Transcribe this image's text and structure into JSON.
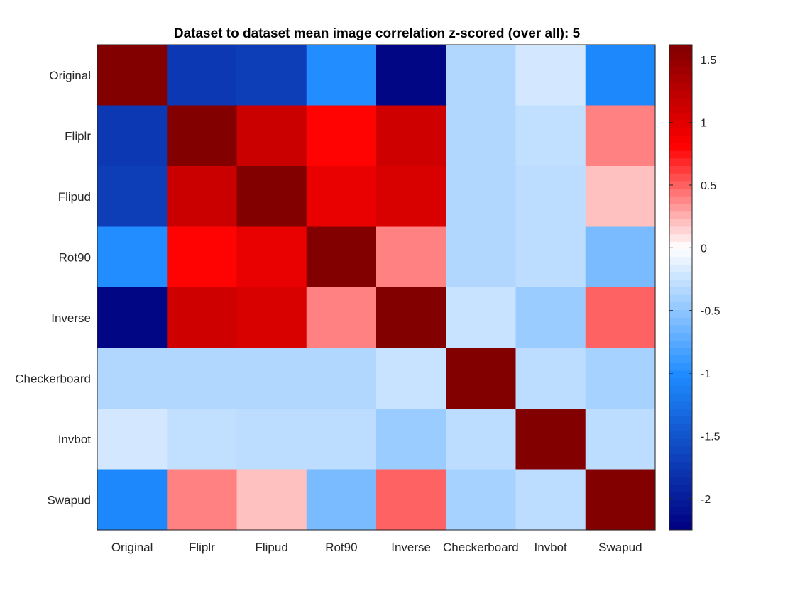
{
  "chart_data": {
    "type": "heatmap",
    "title": "Dataset to dataset mean image correlation z-scored (over all): 5",
    "xlabel": "",
    "ylabel": "",
    "x_categories": [
      "Original",
      "Fliplr",
      "Flipud",
      "Rot90",
      "Inverse",
      "Checkerboard",
      "Invbot",
      "Swapud"
    ],
    "y_categories": [
      "Original",
      "Fliplr",
      "Flipud",
      "Rot90",
      "Inverse",
      "Checkerboard",
      "Invbot",
      "Swapud"
    ],
    "values": [
      [
        1.6,
        -1.75,
        -1.7,
        -1.0,
        -2.2,
        -0.35,
        -0.2,
        -1.05
      ],
      [
        -1.75,
        1.6,
        1.15,
        0.8,
        1.12,
        -0.35,
        -0.28,
        0.4
      ],
      [
        -1.7,
        1.15,
        1.6,
        0.95,
        1.05,
        -0.35,
        -0.3,
        0.2
      ],
      [
        -1.0,
        0.8,
        0.95,
        1.6,
        0.4,
        -0.35,
        -0.3,
        -0.6
      ],
      [
        -2.2,
        1.12,
        1.05,
        0.4,
        1.6,
        -0.25,
        -0.45,
        0.5
      ],
      [
        -0.35,
        -0.35,
        -0.35,
        -0.35,
        -0.25,
        1.6,
        -0.3,
        -0.4
      ],
      [
        -0.2,
        -0.28,
        -0.3,
        -0.3,
        -0.45,
        -0.3,
        1.6,
        -0.3
      ],
      [
        -1.05,
        0.4,
        0.2,
        -0.6,
        0.5,
        -0.4,
        -0.3,
        1.6
      ]
    ],
    "colorbar": {
      "range": [
        -2.25,
        1.62
      ],
      "ticks": [
        1.5,
        1,
        0.5,
        0,
        -0.5,
        -1,
        -1.5,
        -2
      ],
      "tick_labels": [
        "1.5",
        "1",
        "0.5",
        "0",
        "-0.5",
        "-1",
        "-1.5",
        "-2"
      ],
      "colormap": "blue-white-red diverging",
      "anchor_colors": {
        "darkest_blue": "#000080",
        "blue": "#1e8cff",
        "white": "#ffffff",
        "red": "#ff0000",
        "darkest_red": "#800000"
      }
    },
    "legend": "colorbar-right",
    "grid": false
  }
}
